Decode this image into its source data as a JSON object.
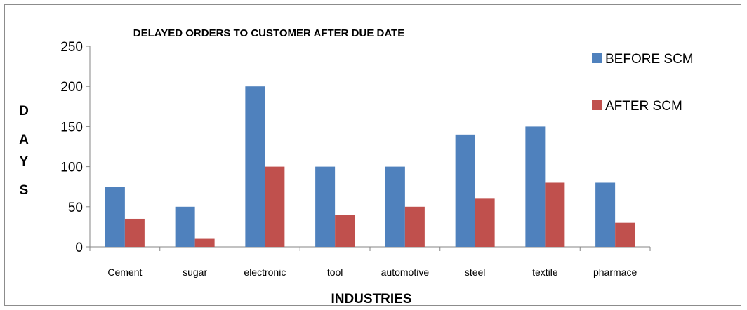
{
  "chart_data": {
    "type": "bar",
    "title": "DELAYED ORDERS TO CUSTOMER AFTER DUE DATE",
    "xlabel": "INDUSTRIES",
    "ylabel_letters": [
      "D",
      "A",
      "Y",
      "S"
    ],
    "categories": [
      "Cement",
      "sugar",
      "electronic",
      "tool",
      "automotive",
      "steel",
      "textile",
      "pharmace"
    ],
    "series": [
      {
        "name": "BEFORE SCM",
        "color": "#4F81BD",
        "values": [
          75,
          50,
          200,
          100,
          100,
          140,
          150,
          80
        ]
      },
      {
        "name": "AFTER SCM",
        "color": "#C0504D",
        "values": [
          35,
          10,
          100,
          40,
          50,
          60,
          80,
          30
        ]
      }
    ],
    "ylim": [
      0,
      250
    ],
    "yticks": [
      0,
      50,
      100,
      150,
      200,
      250
    ],
    "grid": false,
    "legend_position": "top-right"
  }
}
